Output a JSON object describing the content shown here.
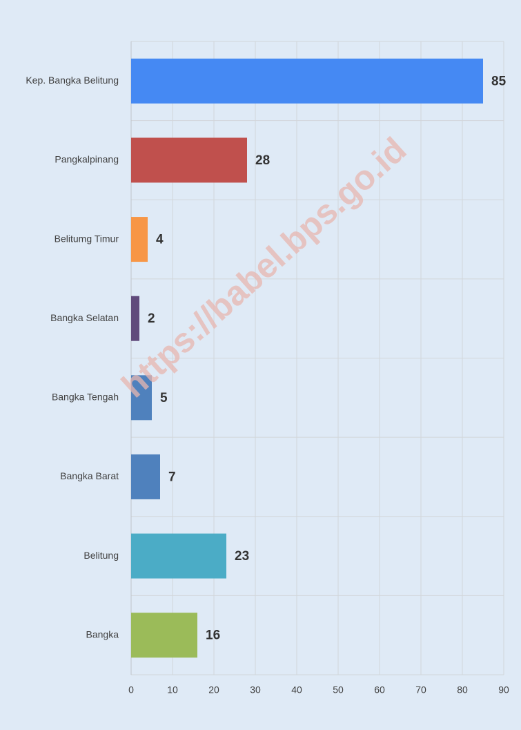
{
  "chart_data": {
    "type": "barh",
    "categories": [
      "Kep. Bangka Belitung",
      "Pangkalpinang",
      "Belitumg Timur",
      "Bangka Selatan",
      "Bangka Tengah",
      "Bangka Barat",
      "Belitung",
      "Bangka"
    ],
    "values": [
      85,
      28,
      4,
      2,
      5,
      7,
      23,
      16
    ],
    "colors": [
      "#4589f3",
      "#c0504d",
      "#f79646",
      "#604a7b",
      "#4f81bd",
      "#4f81bd",
      "#4bacc6",
      "#9bbb59"
    ],
    "xlim": [
      0,
      90
    ],
    "xticks": [
      0,
      10,
      20,
      30,
      40,
      50,
      60,
      70,
      80,
      90
    ],
    "grid": true,
    "watermark": "https://babel.bps.go.id"
  }
}
